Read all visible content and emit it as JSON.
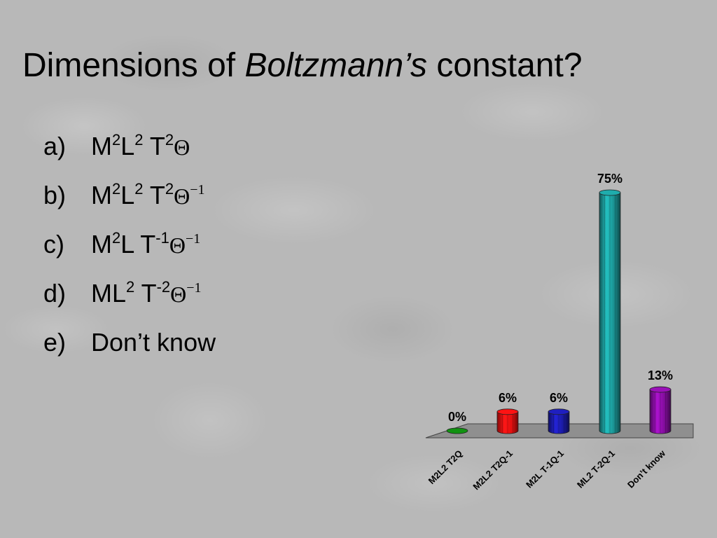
{
  "slide": {
    "title_prefix": "Dimensions of ",
    "title_italic": "Boltzmann’s",
    "title_suffix": " constant?"
  },
  "options": [
    {
      "letter": "a)",
      "parts": [
        {
          "t": "M"
        },
        {
          "s": "2"
        },
        {
          "t": "L"
        },
        {
          "s": "2"
        },
        {
          "t": " T"
        },
        {
          "s": "2"
        },
        {
          "th": "Θ"
        }
      ]
    },
    {
      "letter": "b)",
      "parts": [
        {
          "t": "M"
        },
        {
          "s": "2"
        },
        {
          "t": "L"
        },
        {
          "s": "2"
        },
        {
          "t": " T"
        },
        {
          "s": "2"
        },
        {
          "th": "Θ"
        },
        {
          "ths": "−1"
        }
      ]
    },
    {
      "letter": "c)",
      "parts": [
        {
          "t": "M"
        },
        {
          "s": "2"
        },
        {
          "t": "L T"
        },
        {
          "s": "-1"
        },
        {
          "th": "Θ"
        },
        {
          "ths": "−1"
        }
      ]
    },
    {
      "letter": "d)",
      "parts": [
        {
          "t": "ML"
        },
        {
          "s": "2"
        },
        {
          "t": " T"
        },
        {
          "s": "-2"
        },
        {
          "th": "Θ"
        },
        {
          "ths": "−1"
        }
      ]
    },
    {
      "letter": "e)",
      "parts": [
        {
          "t": "Don’t know"
        }
      ]
    }
  ],
  "chart_data": {
    "type": "bar",
    "categories": [
      "M2L2 T2Q",
      "M2L2 T2Q-1",
      "M2L T-1Q-1",
      "ML2 T-2Q-1",
      "Don’t know"
    ],
    "values": [
      0,
      6,
      6,
      75,
      13
    ],
    "data_labels": [
      "0%",
      "6%",
      "6%",
      "75%",
      "13%"
    ],
    "ylim": [
      0,
      75
    ],
    "grid": false,
    "legend": "none",
    "colors": [
      "#0e7a0e",
      "#e01010",
      "#1a1aa0",
      "#1a8f8f",
      "#800d99"
    ]
  }
}
